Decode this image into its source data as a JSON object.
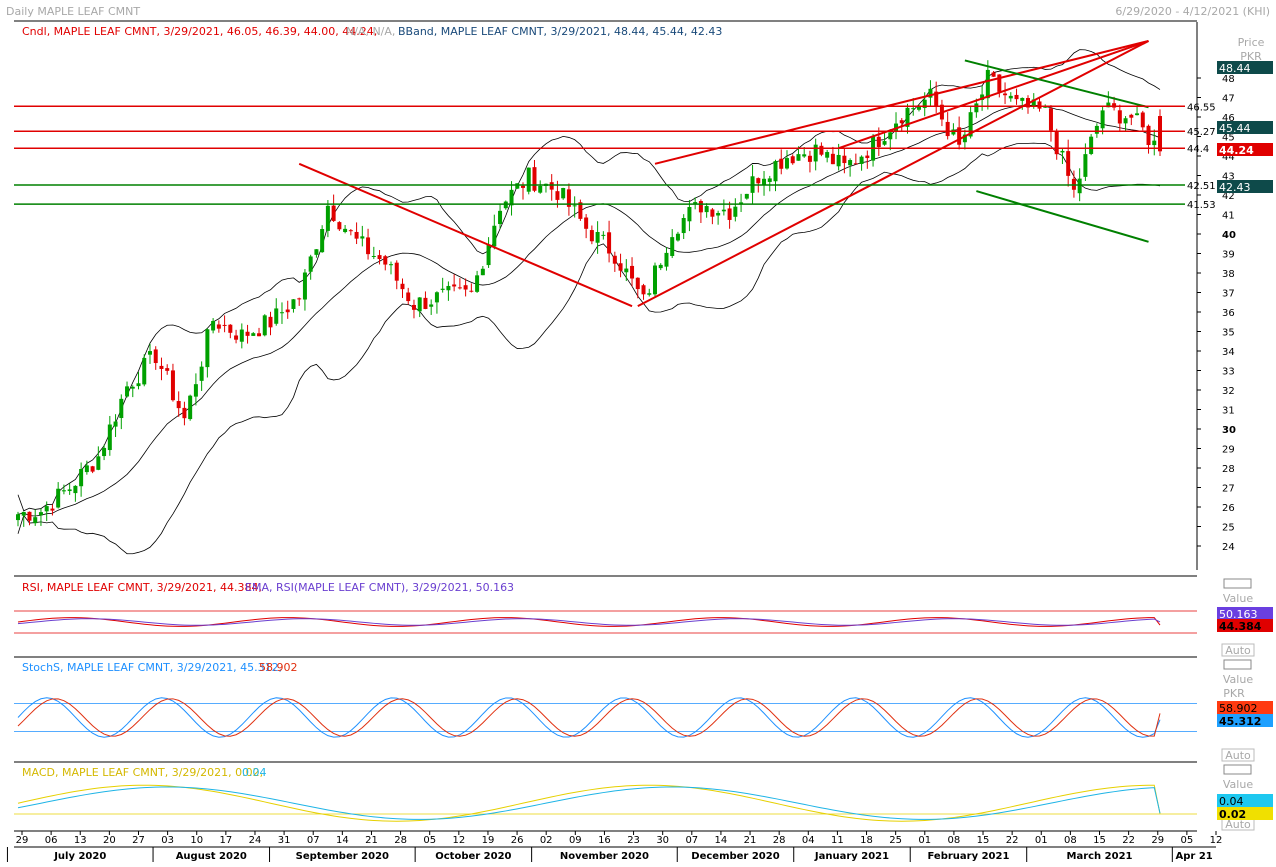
{
  "header": {
    "title": "Daily MAPLE LEAF CMNT",
    "range": "6/29/2020 - 4/12/2021 (KHI)"
  },
  "legends": {
    "price_candle": "Cndl, MAPLE LEAF CMNT, 3/29/2021, 46.05, 46.39, 44.00, 44.24,",
    "price_candle_na": "N/A, N/A,",
    "price_bband": "BBand, MAPLE LEAF CMNT, 3/29/2021, 48.44, 45.44, 42.43",
    "rsi": "RSI, MAPLE LEAF CMNT, 3/29/2021, 44.384,",
    "rsi_ema": "EMA, RSI(MAPLE LEAF CMNT), 3/29/2021, 50.163",
    "stoch": "StochS, MAPLE LEAF CMNT, 3/29/2021, 45.312,",
    "stoch_d": "58.902",
    "macd": "MACD, MAPLE LEAF CMNT, 3/29/2021, 0.02,",
    "macd_sig": "0.04"
  },
  "scale_labels": {
    "price": "Price",
    "pkr": "PKR",
    "value": "Value",
    "auto": "Auto"
  },
  "value_tags": {
    "bb_upper": "48.44",
    "bb_mid": "45.44",
    "close": "44.24",
    "bb_lower": "42.43",
    "rsi_ema": "50.163",
    "rsi": "44.384",
    "stoch_d": "58.902",
    "stoch_k": "45.312",
    "macd_sig": "0.04",
    "macd": "0.02"
  },
  "level_labels": [
    "46.55",
    "45.27",
    "44.4",
    "42.51",
    "41.53"
  ],
  "colors": {
    "up": "#00a000",
    "down": "#e00000",
    "support": "#008000",
    "resistance": "#e00000",
    "rsi": "#e00000",
    "rsi_ema": "#6a3fd0",
    "stoch_k": "#1e90ff",
    "stoch_d": "#e03010",
    "macd": "#e6d000",
    "macd_sig": "#1eb4e6"
  },
  "x_axis": {
    "days": [
      "29",
      "06",
      "13",
      "20",
      "27",
      "03",
      "10",
      "17",
      "24",
      "31",
      "07",
      "14",
      "21",
      "28",
      "05",
      "12",
      "19",
      "26",
      "02",
      "09",
      "16",
      "23",
      "30",
      "07",
      "14",
      "21",
      "28",
      "04",
      "11",
      "18",
      "25",
      "01",
      "08",
      "15",
      "22",
      "01",
      "08",
      "15",
      "22",
      "29",
      "05",
      "12"
    ],
    "months": [
      "July 2020",
      "August 2020",
      "September 2020",
      "October 2020",
      "November 2020",
      "December 2020",
      "January 2021",
      "February 2021",
      "March 2021",
      "Apr 21"
    ]
  },
  "chart_data": {
    "type": "candlestick",
    "title": "Daily MAPLE LEAF CMNT",
    "date_range": "6/29/2020 - 4/12/2021",
    "y_range": [
      23,
      50
    ],
    "y_ticks": [
      24,
      25,
      26,
      27,
      28,
      29,
      30,
      31,
      32,
      33,
      34,
      35,
      36,
      37,
      38,
      39,
      40,
      41,
      42,
      43,
      44,
      45,
      46,
      47,
      48
    ],
    "last_bar": {
      "date": "3/29/2021",
      "open": 46.05,
      "high": 46.39,
      "low": 44.0,
      "close": 44.24
    },
    "bollinger_last": {
      "upper": 48.44,
      "middle": 45.44,
      "lower": 42.43
    },
    "horizontal_levels": [
      {
        "value": 46.55,
        "color": "red"
      },
      {
        "value": 45.27,
        "color": "red"
      },
      {
        "value": 44.4,
        "color": "red"
      },
      {
        "value": 42.51,
        "color": "green"
      },
      {
        "value": 41.53,
        "color": "green"
      }
    ],
    "weekly_closes": [
      25.8,
      27.0,
      28.6,
      32.2,
      33.8,
      30.5,
      35.6,
      34.8,
      35.5,
      36.8,
      41.5,
      39.6,
      38.5,
      36.4,
      36.8,
      36.9,
      41.5,
      42.9,
      42.2,
      40.3,
      39.0,
      36.5,
      40.3,
      41.5,
      41.2,
      43.0,
      44.0,
      44.3,
      43.4,
      44.6,
      46.2,
      47.0,
      44.4,
      47.9,
      46.6,
      46.2,
      42.1,
      46.4,
      46.0,
      44.24
    ],
    "rsi_last": {
      "rsi": 44.384,
      "ema": 50.163
    },
    "stoch_last": {
      "k": 45.312,
      "d": 58.902
    },
    "macd_last": {
      "macd": 0.02,
      "signal": 0.04
    }
  }
}
